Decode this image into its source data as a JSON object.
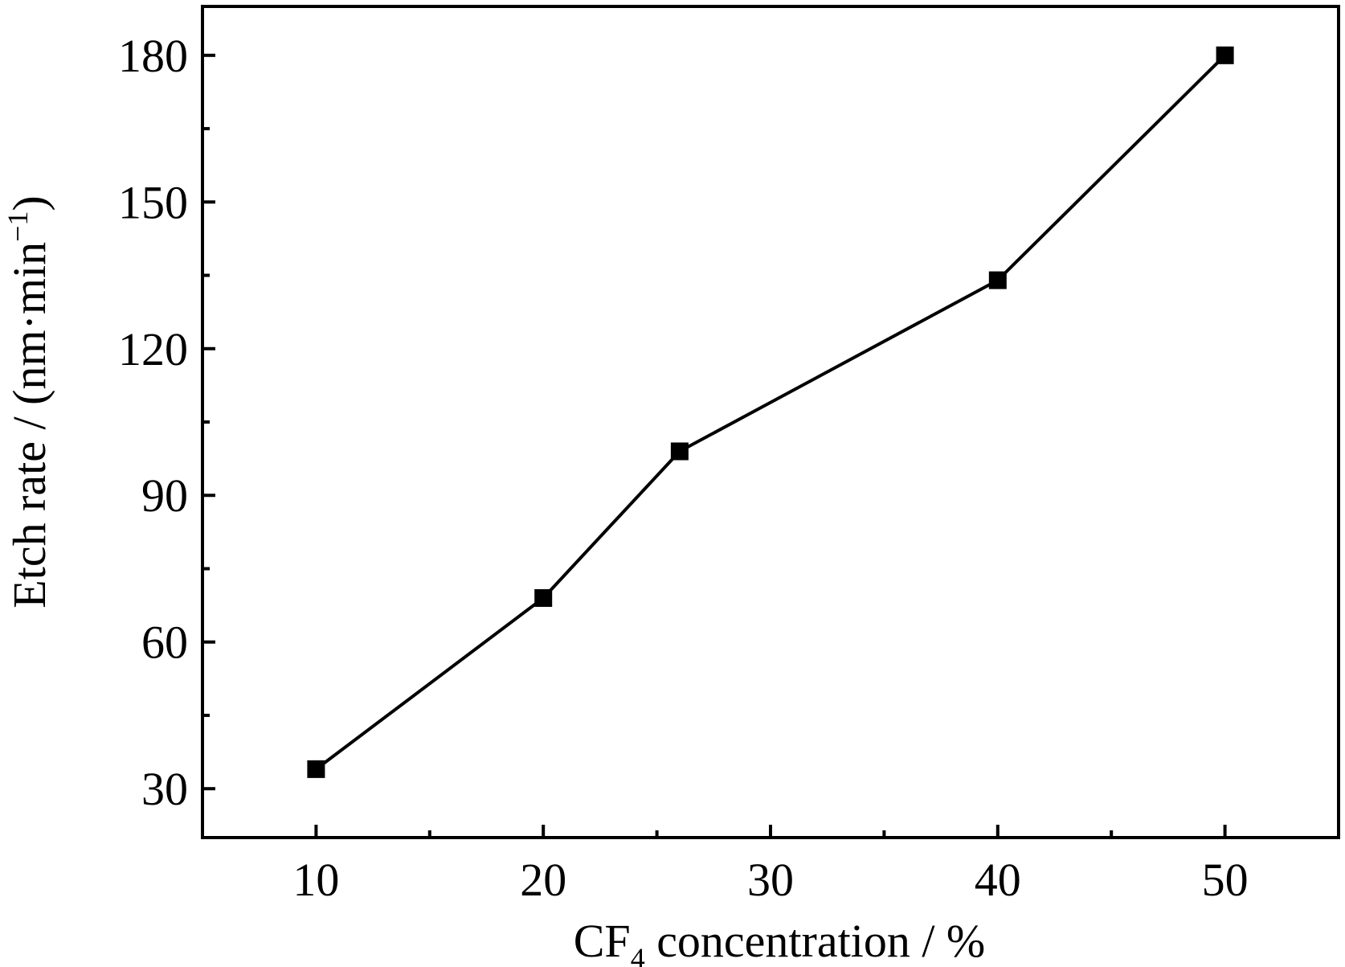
{
  "chart_data": {
    "type": "line",
    "title": "",
    "xlabel": {
      "prefix": "CF",
      "subscript": "4",
      "suffix": " concentration / %"
    },
    "ylabel": {
      "prefix": "Etch rate / (nm·min",
      "superscript": "−1",
      "suffix": ")"
    },
    "xlim": [
      5,
      55
    ],
    "ylim": [
      20,
      190
    ],
    "xticks": [
      10,
      20,
      30,
      40,
      50
    ],
    "yticks": [
      30,
      60,
      90,
      120,
      150,
      180
    ],
    "x_minor_ticks": [
      15,
      25,
      35,
      45
    ],
    "y_minor_ticks": [
      45,
      75,
      105,
      135,
      165
    ],
    "grid": false,
    "legend": "none",
    "series": [
      {
        "marker": "square",
        "color": "#000000",
        "x": [
          10,
          20,
          26,
          40,
          50
        ],
        "y": [
          34,
          69,
          99,
          134,
          180
        ]
      }
    ]
  }
}
